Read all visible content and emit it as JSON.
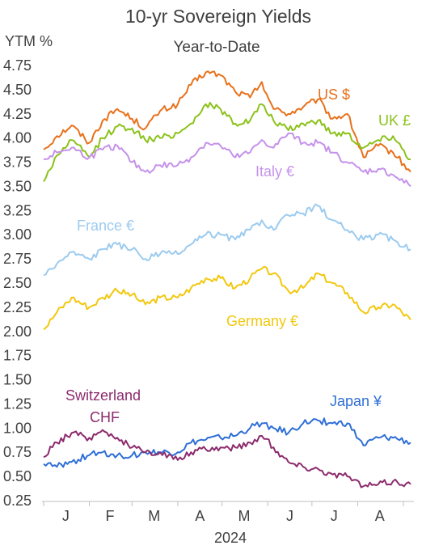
{
  "chart_data": {
    "type": "line",
    "title": "10-yr Sovereign Yields",
    "subtitle": "Year-to-Date",
    "ylabel": "YTM %",
    "xlabel": "2024",
    "ylim": [
      0.25,
      4.75
    ],
    "yticks": [
      "4.75",
      "4.50",
      "4.25",
      "4.00",
      "3.75",
      "3.50",
      "3.25",
      "3.00",
      "2.75",
      "2.50",
      "2.25",
      "2.00",
      "1.75",
      "1.50",
      "1.25",
      "1.00",
      "0.75",
      "0.50",
      "0.25"
    ],
    "x_start": "2024-01-01",
    "x_end": "2024-09-06",
    "month_labels": [
      "J",
      "F",
      "M",
      "A",
      "M",
      "J",
      "J",
      "A"
    ],
    "month_label_dates": [
      "2024-01-16",
      "2024-02-15",
      "2024-03-16",
      "2024-04-16",
      "2024-05-16",
      "2024-06-16",
      "2024-07-16",
      "2024-08-16"
    ],
    "grid": false,
    "legend": "inline labels",
    "series": [
      {
        "name": "US $",
        "color": "#e8711b",
        "points": [
          [
            "2024-01-01",
            3.88
          ],
          [
            "2024-01-10",
            4.02
          ],
          [
            "2024-01-20",
            4.13
          ],
          [
            "2024-02-01",
            3.95
          ],
          [
            "2024-02-10",
            4.18
          ],
          [
            "2024-02-20",
            4.3
          ],
          [
            "2024-03-01",
            4.2
          ],
          [
            "2024-03-10",
            4.1
          ],
          [
            "2024-03-20",
            4.28
          ],
          [
            "2024-04-01",
            4.35
          ],
          [
            "2024-04-10",
            4.55
          ],
          [
            "2024-04-20",
            4.68
          ],
          [
            "2024-04-30",
            4.65
          ],
          [
            "2024-05-10",
            4.48
          ],
          [
            "2024-05-20",
            4.42
          ],
          [
            "2024-05-28",
            4.58
          ],
          [
            "2024-06-05",
            4.3
          ],
          [
            "2024-06-15",
            4.25
          ],
          [
            "2024-06-25",
            4.32
          ],
          [
            "2024-07-05",
            4.4
          ],
          [
            "2024-07-15",
            4.2
          ],
          [
            "2024-07-25",
            4.25
          ],
          [
            "2024-08-05",
            3.8
          ],
          [
            "2024-08-15",
            3.92
          ],
          [
            "2024-08-25",
            3.85
          ],
          [
            "2024-09-06",
            3.65
          ]
        ]
      },
      {
        "name": "UK £",
        "color": "#8bc21a",
        "points": [
          [
            "2024-01-01",
            3.55
          ],
          [
            "2024-01-10",
            3.82
          ],
          [
            "2024-01-20",
            3.98
          ],
          [
            "2024-02-01",
            3.8
          ],
          [
            "2024-02-10",
            4.0
          ],
          [
            "2024-02-20",
            4.12
          ],
          [
            "2024-03-01",
            4.1
          ],
          [
            "2024-03-10",
            3.98
          ],
          [
            "2024-03-20",
            4.0
          ],
          [
            "2024-04-01",
            4.05
          ],
          [
            "2024-04-10",
            4.15
          ],
          [
            "2024-04-20",
            4.35
          ],
          [
            "2024-04-30",
            4.3
          ],
          [
            "2024-05-10",
            4.15
          ],
          [
            "2024-05-20",
            4.18
          ],
          [
            "2024-05-28",
            4.35
          ],
          [
            "2024-06-05",
            4.18
          ],
          [
            "2024-06-15",
            4.08
          ],
          [
            "2024-06-25",
            4.15
          ],
          [
            "2024-07-05",
            4.18
          ],
          [
            "2024-07-15",
            4.05
          ],
          [
            "2024-07-25",
            4.05
          ],
          [
            "2024-08-05",
            3.9
          ],
          [
            "2024-08-15",
            3.98
          ],
          [
            "2024-08-25",
            4.02
          ],
          [
            "2024-09-06",
            3.78
          ]
        ]
      },
      {
        "name": "Italy €",
        "color": "#c592ea",
        "points": [
          [
            "2024-01-01",
            3.78
          ],
          [
            "2024-01-10",
            3.85
          ],
          [
            "2024-01-20",
            3.9
          ],
          [
            "2024-02-01",
            3.8
          ],
          [
            "2024-02-10",
            3.88
          ],
          [
            "2024-02-20",
            3.92
          ],
          [
            "2024-03-01",
            3.75
          ],
          [
            "2024-03-10",
            3.65
          ],
          [
            "2024-03-20",
            3.72
          ],
          [
            "2024-04-01",
            3.72
          ],
          [
            "2024-04-10",
            3.8
          ],
          [
            "2024-04-20",
            3.95
          ],
          [
            "2024-04-30",
            3.92
          ],
          [
            "2024-05-10",
            3.8
          ],
          [
            "2024-05-20",
            3.85
          ],
          [
            "2024-05-28",
            3.98
          ],
          [
            "2024-06-05",
            3.9
          ],
          [
            "2024-06-15",
            4.05
          ],
          [
            "2024-06-25",
            3.95
          ],
          [
            "2024-07-05",
            3.95
          ],
          [
            "2024-07-15",
            3.85
          ],
          [
            "2024-07-25",
            3.75
          ],
          [
            "2024-08-05",
            3.65
          ],
          [
            "2024-08-15",
            3.68
          ],
          [
            "2024-08-25",
            3.62
          ],
          [
            "2024-09-06",
            3.5
          ]
        ]
      },
      {
        "name": "France €",
        "color": "#9ccbef",
        "points": [
          [
            "2024-01-01",
            2.58
          ],
          [
            "2024-01-10",
            2.7
          ],
          [
            "2024-01-20",
            2.82
          ],
          [
            "2024-02-01",
            2.75
          ],
          [
            "2024-02-10",
            2.85
          ],
          [
            "2024-02-20",
            2.9
          ],
          [
            "2024-03-01",
            2.85
          ],
          [
            "2024-03-10",
            2.75
          ],
          [
            "2024-03-20",
            2.8
          ],
          [
            "2024-04-01",
            2.8
          ],
          [
            "2024-04-10",
            2.9
          ],
          [
            "2024-04-20",
            3.0
          ],
          [
            "2024-04-30",
            3.0
          ],
          [
            "2024-05-10",
            2.95
          ],
          [
            "2024-05-20",
            3.05
          ],
          [
            "2024-05-28",
            3.15
          ],
          [
            "2024-06-05",
            3.05
          ],
          [
            "2024-06-15",
            3.2
          ],
          [
            "2024-06-25",
            3.22
          ],
          [
            "2024-07-05",
            3.3
          ],
          [
            "2024-07-15",
            3.15
          ],
          [
            "2024-07-25",
            3.05
          ],
          [
            "2024-08-05",
            2.95
          ],
          [
            "2024-08-15",
            3.0
          ],
          [
            "2024-08-25",
            2.95
          ],
          [
            "2024-09-06",
            2.85
          ]
        ]
      },
      {
        "name": "Germany €",
        "color": "#f2c80f",
        "points": [
          [
            "2024-01-01",
            2.02
          ],
          [
            "2024-01-10",
            2.2
          ],
          [
            "2024-01-20",
            2.35
          ],
          [
            "2024-02-01",
            2.25
          ],
          [
            "2024-02-10",
            2.35
          ],
          [
            "2024-02-20",
            2.42
          ],
          [
            "2024-03-01",
            2.38
          ],
          [
            "2024-03-10",
            2.28
          ],
          [
            "2024-03-20",
            2.35
          ],
          [
            "2024-04-01",
            2.35
          ],
          [
            "2024-04-10",
            2.45
          ],
          [
            "2024-04-20",
            2.55
          ],
          [
            "2024-04-30",
            2.55
          ],
          [
            "2024-05-10",
            2.45
          ],
          [
            "2024-05-20",
            2.55
          ],
          [
            "2024-05-28",
            2.65
          ],
          [
            "2024-06-05",
            2.6
          ],
          [
            "2024-06-15",
            2.42
          ],
          [
            "2024-06-25",
            2.45
          ],
          [
            "2024-07-05",
            2.6
          ],
          [
            "2024-07-15",
            2.5
          ],
          [
            "2024-07-25",
            2.4
          ],
          [
            "2024-08-05",
            2.2
          ],
          [
            "2024-08-15",
            2.25
          ],
          [
            "2024-08-25",
            2.28
          ],
          [
            "2024-09-06",
            2.12
          ]
        ]
      },
      {
        "name": "Japan ¥",
        "color": "#2f6fd6",
        "points": [
          [
            "2024-01-01",
            0.63
          ],
          [
            "2024-01-10",
            0.6
          ],
          [
            "2024-01-20",
            0.65
          ],
          [
            "2024-02-01",
            0.72
          ],
          [
            "2024-02-10",
            0.75
          ],
          [
            "2024-02-20",
            0.72
          ],
          [
            "2024-03-01",
            0.72
          ],
          [
            "2024-03-10",
            0.75
          ],
          [
            "2024-03-20",
            0.75
          ],
          [
            "2024-04-01",
            0.75
          ],
          [
            "2024-04-10",
            0.85
          ],
          [
            "2024-04-20",
            0.88
          ],
          [
            "2024-04-30",
            0.9
          ],
          [
            "2024-05-10",
            0.92
          ],
          [
            "2024-05-20",
            1.0
          ],
          [
            "2024-05-28",
            1.05
          ],
          [
            "2024-06-05",
            1.0
          ],
          [
            "2024-06-15",
            0.95
          ],
          [
            "2024-06-25",
            1.05
          ],
          [
            "2024-07-05",
            1.08
          ],
          [
            "2024-07-15",
            1.05
          ],
          [
            "2024-07-25",
            1.05
          ],
          [
            "2024-08-05",
            0.82
          ],
          [
            "2024-08-15",
            0.9
          ],
          [
            "2024-08-25",
            0.9
          ],
          [
            "2024-09-06",
            0.85
          ]
        ]
      },
      {
        "name": "Switzerland CHF",
        "color": "#8c2b6d",
        "points": [
          [
            "2024-01-01",
            0.7
          ],
          [
            "2024-01-10",
            0.85
          ],
          [
            "2024-01-20",
            0.95
          ],
          [
            "2024-02-01",
            0.9
          ],
          [
            "2024-02-10",
            0.98
          ],
          [
            "2024-02-20",
            0.9
          ],
          [
            "2024-03-01",
            0.8
          ],
          [
            "2024-03-10",
            0.75
          ],
          [
            "2024-03-20",
            0.75
          ],
          [
            "2024-04-01",
            0.67
          ],
          [
            "2024-04-10",
            0.75
          ],
          [
            "2024-04-20",
            0.78
          ],
          [
            "2024-04-30",
            0.8
          ],
          [
            "2024-05-10",
            0.8
          ],
          [
            "2024-05-20",
            0.85
          ],
          [
            "2024-05-28",
            0.92
          ],
          [
            "2024-06-05",
            0.8
          ],
          [
            "2024-06-15",
            0.65
          ],
          [
            "2024-06-25",
            0.6
          ],
          [
            "2024-07-05",
            0.58
          ],
          [
            "2024-07-15",
            0.52
          ],
          [
            "2024-07-25",
            0.5
          ],
          [
            "2024-08-05",
            0.4
          ],
          [
            "2024-08-15",
            0.42
          ],
          [
            "2024-08-25",
            0.45
          ],
          [
            "2024-09-06",
            0.42
          ]
        ]
      }
    ],
    "annotations": [
      {
        "text": "US $",
        "color": "#e8711b"
      },
      {
        "text": "UK £",
        "color": "#8bc21a"
      },
      {
        "text": "Italy €",
        "color": "#c592ea"
      },
      {
        "text": "France €",
        "color": "#9ccbef"
      },
      {
        "text": "Germany €",
        "color": "#f2c80f"
      },
      {
        "text": "Switzerland",
        "color": "#8c2b6d"
      },
      {
        "text": "CHF",
        "color": "#8c2b6d"
      },
      {
        "text": "Japan ¥",
        "color": "#2f6fd6"
      }
    ]
  }
}
